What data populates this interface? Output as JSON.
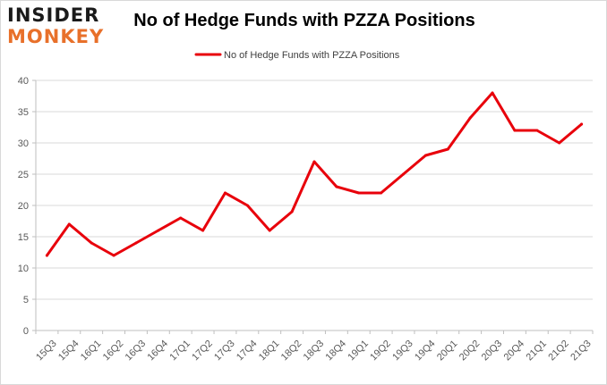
{
  "logo": {
    "line1": "INSIDER",
    "line2": "MONKEY"
  },
  "colors": {
    "series": "#e8000b",
    "grid": "#d9d9d9",
    "axis": "#bfbfbf",
    "logo_accent": "#e8702a"
  },
  "chart_data": {
    "type": "line",
    "title": "No of Hedge Funds with PZZA Positions",
    "xlabel": "",
    "ylabel": "",
    "ylim": [
      0,
      40
    ],
    "yticks": [
      0,
      5,
      10,
      15,
      20,
      25,
      30,
      35,
      40
    ],
    "grid": true,
    "legend_position": "top",
    "categories": [
      "15Q3",
      "15Q4",
      "16Q1",
      "16Q2",
      "16Q3",
      "16Q4",
      "17Q1",
      "17Q2",
      "17Q3",
      "17Q4",
      "18Q1",
      "18Q2",
      "18Q3",
      "18Q4",
      "19Q1",
      "19Q2",
      "19Q3",
      "19Q4",
      "20Q1",
      "20Q2",
      "20Q3",
      "20Q4",
      "21Q1",
      "21Q2",
      "21Q3"
    ],
    "series": [
      {
        "name": "No of Hedge Funds with PZZA Positions",
        "values": [
          12,
          17,
          14,
          12,
          14,
          16,
          18,
          16,
          22,
          20,
          16,
          19,
          27,
          23,
          22,
          22,
          25,
          28,
          29,
          34,
          38,
          32,
          32,
          30,
          33
        ]
      }
    ]
  }
}
